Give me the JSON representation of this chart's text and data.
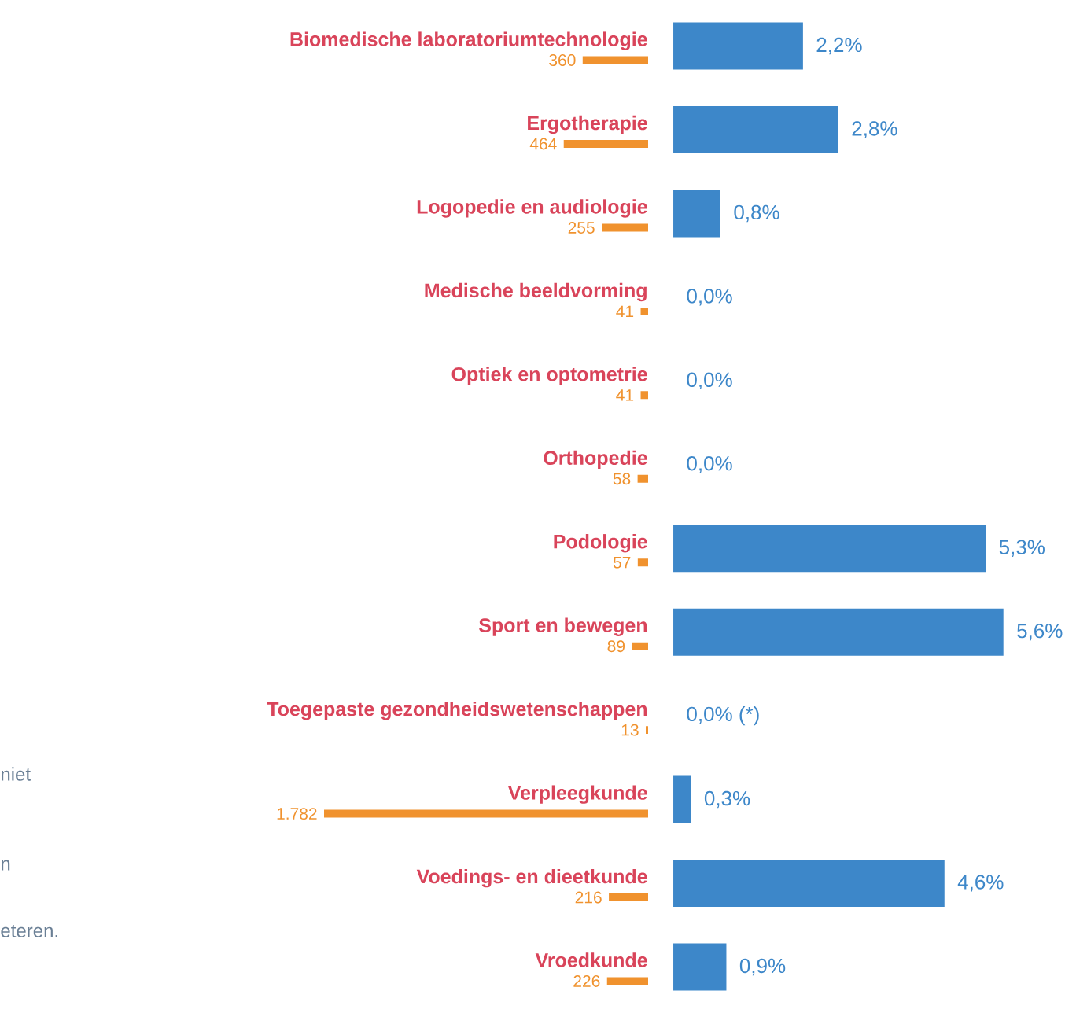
{
  "chart_data": [
    {
      "type": "bar",
      "orientation": "horizontal",
      "categories": [
        "Biomedische laboratoriumtechnologie",
        "Ergotherapie",
        "Logopedie en audiologie",
        "Medische beeldvorming",
        "Optiek en optometrie",
        "Orthopedie",
        "Podologie",
        "Sport en bewegen",
        "Toegepaste gezondheidswetenschappen",
        "Verpleegkunde",
        "Voedings- en dieetkunde",
        "Vroedkunde"
      ],
      "color": "#f0922e",
      "values": [
        360,
        464,
        255,
        41,
        41,
        58,
        57,
        89,
        13,
        1782,
        216,
        226
      ],
      "value_labels": [
        "360",
        "464",
        "255",
        "41",
        "41",
        "58",
        "57",
        "89",
        "13",
        "1.782",
        "216",
        "226"
      ],
      "tick_labels": "y",
      "annotations": [
        "niet",
        "n",
        "eteren."
      ]
    },
    {
      "type": "bar",
      "orientation": "horizontal",
      "categories": [
        null,
        null,
        null,
        null,
        null,
        null,
        null,
        null,
        null,
        null,
        null,
        null
      ],
      "color": "#3d87c9",
      "values": [
        2.2,
        2.8,
        0.8,
        0.0,
        0.0,
        0.0,
        5.3,
        5.6,
        0.0,
        0.3,
        4.6,
        0.9
      ],
      "value_labels": [
        "2,2%",
        "2,8%",
        "0,8%",
        "0,0%",
        "0,0%",
        "0,0%",
        "5,3%",
        "5,6%",
        "0,0% (*)",
        "0,3%",
        "4,6%",
        "0,9%"
      ],
      "tick_labels": false
    }
  ]
}
